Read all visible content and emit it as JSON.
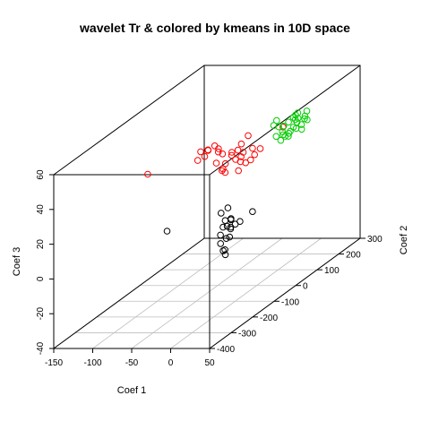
{
  "chart_data": {
    "type": "scatter",
    "title": "wavelet Tr & colored by kmeans in 10D space",
    "xlabel": "Coef 1",
    "ylabel": "Coef 2",
    "zlabel": "Coef 3",
    "xlim": [
      -150,
      50
    ],
    "ylim": [
      -400,
      300
    ],
    "zlim": [
      -40,
      60
    ],
    "x_ticks": [
      -150,
      -100,
      -50,
      0,
      50
    ],
    "y_ticks": [
      -400,
      -300,
      -200,
      -100,
      0,
      100,
      200,
      300
    ],
    "z_ticks": [
      -40,
      -20,
      0,
      20,
      40,
      60
    ],
    "grid": "floor",
    "colors": {
      "cluster_1": "#000000",
      "cluster_2": "#ff0000",
      "cluster_3": "#00cd00"
    },
    "series": [
      {
        "color": "#000000",
        "points": [
          [
            -27.6,
            -316.8,
            20.0
          ],
          [
            3.8,
            -147.7,
            18.0
          ],
          [
            6.9,
            -145.2,
            11.0
          ],
          [
            1.2,
            -169.6,
            17.0
          ],
          [
            4.2,
            -161.3,
            12.0
          ],
          [
            6.9,
            -181.4,
            10.0
          ],
          [
            10.6,
            -159.2,
            8.0
          ],
          [
            17.3,
            -162.1,
            10.0
          ],
          [
            13.5,
            -170.2,
            8.0
          ],
          [
            5.2,
            -187.3,
            6.0
          ],
          [
            8.1,
            -197.3,
            2.0
          ],
          [
            12.5,
            -186.7,
            4.0
          ],
          [
            17.3,
            -188.6,
            5.0
          ],
          [
            21.7,
            -156.1,
            11.0
          ],
          [
            29.6,
            -126.6,
            14.0
          ],
          [
            8.3,
            -149.4,
            12.0
          ],
          [
            7.6,
            -164.5,
            9.0
          ],
          [
            11.8,
            -198.5,
            -2.0
          ],
          [
            15.4,
            -203.4,
            -1.0
          ],
          [
            18.4,
            -212.4,
            -3.0
          ]
        ]
      },
      {
        "color": "#ff0000",
        "points": [
          [
            -54.6,
            -308.8,
            52.0
          ],
          [
            11.9,
            79.3,
            44.0
          ],
          [
            -12.6,
            -196.1,
            52.0
          ],
          [
            -10.8,
            -186.9,
            55.0
          ],
          [
            -8.5,
            -146.7,
            52.0
          ],
          [
            -13.8,
            -210.2,
            56.0
          ],
          [
            -12.7,
            -179.6,
            54.0
          ],
          [
            -14.6,
            -221.4,
            52.0
          ],
          [
            -6.2,
            -172.7,
            56.0
          ],
          [
            -4.3,
            -172.0,
            46.0
          ],
          [
            -2.9,
            -167.8,
            52.0
          ],
          [
            -6.5,
            -135.3,
            48.0
          ],
          [
            -2.1,
            -153.8,
            40.0
          ],
          [
            1.7,
            -122.3,
            46.0
          ],
          [
            6.4,
            -94.5,
            50.0
          ],
          [
            -3.9,
            -131.4,
            42.0
          ],
          [
            -3.9,
            -142.5,
            40.0
          ],
          [
            -1.0,
            -143.1,
            38.0
          ],
          [
            1.8,
            -104.4,
            42.0
          ],
          [
            2.8,
            -125.5,
            48.0
          ],
          [
            6.7,
            -111.4,
            48.0
          ],
          [
            11.3,
            -103.4,
            46.0
          ],
          [
            6.6,
            -63.3,
            52.0
          ],
          [
            10.1,
            -109.1,
            44.0
          ],
          [
            11.8,
            -118.4,
            42.0
          ],
          [
            14.4,
            -103.5,
            40.0
          ],
          [
            17.9,
            -74.5,
            42.0
          ],
          [
            16.2,
            -77.8,
            46.0
          ],
          [
            15.8,
            -85.1,
            40.0
          ],
          [
            13.0,
            -131.9,
            38.0
          ],
          [
            20.5,
            -57.5,
            44.0
          ]
        ]
      },
      {
        "color": "#00cd00",
        "points": [
          [
            21.6,
            0.7,
            52.0
          ],
          [
            23.0,
            9.7,
            54.0
          ],
          [
            28.6,
            44.7,
            50.0
          ],
          [
            32.5,
            52.4,
            52.0
          ],
          [
            30.4,
            80.9,
            52.0
          ],
          [
            31.4,
            67.5,
            52.0
          ],
          [
            27.4,
            88.2,
            46.0
          ],
          [
            33.0,
            104.8,
            48.0
          ],
          [
            24.4,
            14.2,
            50.0
          ],
          [
            25.7,
            26.9,
            46.0
          ],
          [
            28.6,
            52.7,
            44.0
          ],
          [
            32.8,
            60.8,
            50.0
          ],
          [
            34.1,
            68.8,
            50.0
          ],
          [
            31.4,
            94.5,
            44.0
          ],
          [
            29.3,
            19.6,
            50.0
          ],
          [
            19.6,
            19.6,
            44.0
          ],
          [
            33.7,
            87.1,
            42.0
          ],
          [
            20.3,
            38.5,
            40.0
          ],
          [
            38.7,
            92.9,
            52.0
          ],
          [
            24.8,
            42.8,
            42.0
          ],
          [
            25.5,
            30.5,
            44.0
          ],
          [
            30.3,
            39.8,
            44.0
          ],
          [
            31.5,
            56.8,
            46.0
          ],
          [
            31.2,
            70.8,
            44.0
          ],
          [
            36.4,
            103.2,
            46.0
          ],
          [
            28.9,
            42.8,
            42.0
          ],
          [
            37.1,
            88.3,
            48.0
          ]
        ]
      }
    ]
  }
}
